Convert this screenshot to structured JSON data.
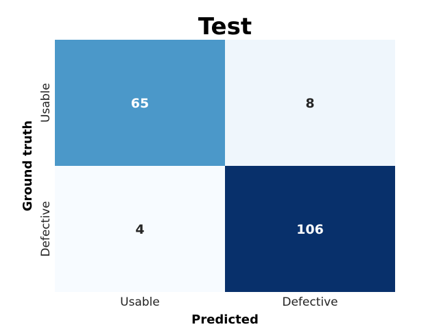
{
  "chart_data": {
    "type": "heatmap",
    "title": "Test",
    "xlabel": "Predicted",
    "ylabel": "Ground truth",
    "x_categories": [
      "Usable",
      "Defective"
    ],
    "y_categories": [
      "Usable",
      "Defective"
    ],
    "values": [
      [
        65,
        8
      ],
      [
        4,
        106
      ]
    ],
    "colormap": "Blues",
    "colorbar": false,
    "grid": false
  }
}
